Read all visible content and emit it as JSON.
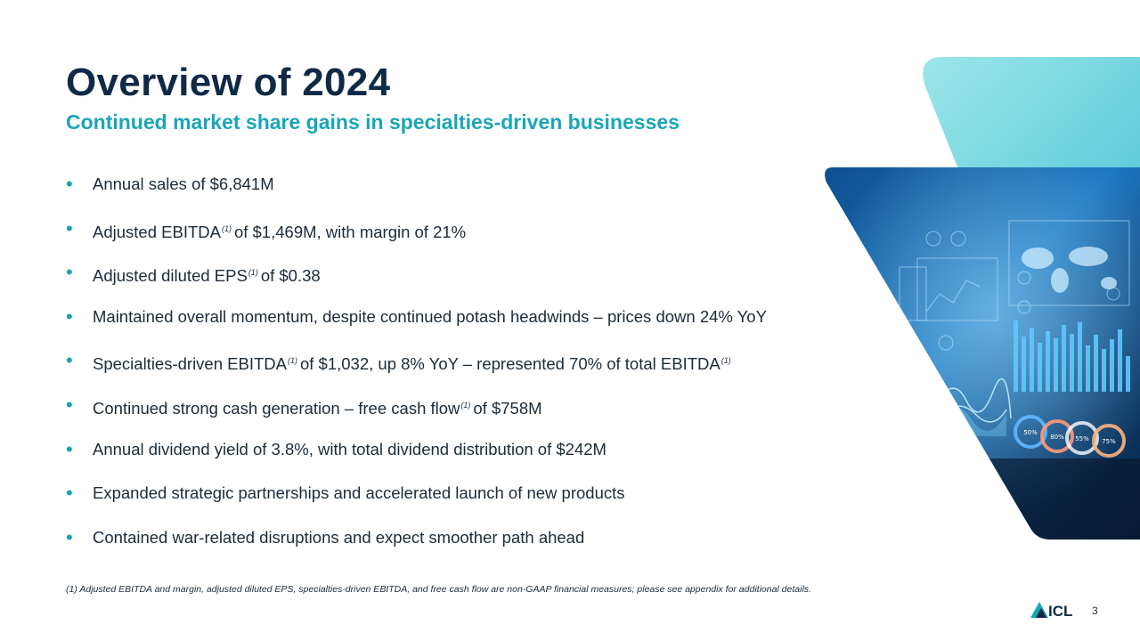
{
  "slide": {
    "title": "Overview of 2024",
    "subtitle": "Continued market share gains in specialties-driven businesses",
    "page_number": "3"
  },
  "bullets": [
    {
      "parts": [
        "Annual sales of $6,841M"
      ]
    },
    {
      "parts": [
        "Adjusted EBITDA",
        "(1)",
        "of $1,469M, with margin of 21%"
      ]
    },
    {
      "parts": [
        "Adjusted diluted EPS",
        "(1)",
        "of $0.38"
      ]
    },
    {
      "parts": [
        "Maintained overall momentum, despite continued potash headwinds – prices down 24% YoY"
      ]
    },
    {
      "parts": [
        "Specialties-driven EBITDA",
        "(1)",
        "of $1,032, up 8% YoY – represented 70% of total EBITDA",
        "(1)"
      ]
    },
    {
      "parts": [
        "Continued strong cash generation – free cash flow",
        "(1)",
        "of $758M"
      ]
    },
    {
      "parts": [
        "Annual dividend yield of 3.8%, with total dividend distribution of $242M"
      ]
    },
    {
      "parts": [
        "Expanded strategic partnerships and accelerated launch of new products"
      ]
    },
    {
      "parts": [
        "Contained war-related disruptions and expect smoother path ahead"
      ]
    }
  ],
  "footnote": "(1) Adjusted EBITDA and margin, adjusted diluted EPS, specialties-driven EBITDA, and free cash flow are non-GAAP financial measures; please see appendix for additional details.",
  "logo": {
    "text": "ICL"
  },
  "hero_image": {
    "gauges": [
      "50%",
      "80%",
      "55%",
      "75%"
    ]
  },
  "colors": {
    "title": "#0f2a47",
    "accent": "#1aa6b7",
    "bullet": "#14a3b6",
    "teal_shape": "#7fdbe3"
  }
}
